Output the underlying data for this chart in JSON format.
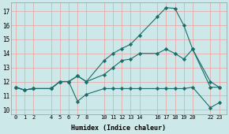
{
  "xlabel": "Humidex (Indice chaleur)",
  "bg_color": "#cce8e8",
  "line_color": "#1a6e6a",
  "grid_color_major": "#e8a0a0",
  "grid_color_minor": "#e8c8c8",
  "xlim": [
    -0.5,
    23.8
  ],
  "ylim": [
    9.7,
    17.6
  ],
  "xticks": [
    0,
    1,
    2,
    4,
    5,
    6,
    7,
    8,
    10,
    11,
    12,
    13,
    14,
    16,
    17,
    18,
    19,
    20,
    22,
    23
  ],
  "yticks": [
    10,
    11,
    12,
    13,
    14,
    15,
    16,
    17
  ],
  "line1_x": [
    0,
    1,
    2,
    4,
    5,
    6,
    7,
    8,
    10,
    11,
    12,
    13,
    14,
    16,
    17,
    18,
    19,
    20,
    22,
    23
  ],
  "line1_y": [
    11.6,
    11.4,
    11.5,
    11.5,
    12.0,
    12.0,
    10.6,
    11.1,
    11.5,
    11.5,
    11.5,
    11.5,
    11.5,
    11.5,
    11.5,
    11.5,
    11.5,
    11.6,
    10.15,
    10.5
  ],
  "line2_x": [
    0,
    1,
    2,
    4,
    5,
    6,
    7,
    8,
    10,
    11,
    12,
    13,
    14,
    16,
    17,
    18,
    19,
    20,
    22,
    23
  ],
  "line2_y": [
    11.6,
    11.4,
    11.5,
    11.5,
    12.0,
    12.0,
    12.4,
    12.0,
    13.5,
    14.0,
    14.35,
    14.65,
    15.3,
    16.6,
    17.25,
    17.2,
    16.0,
    14.3,
    12.0,
    11.6
  ],
  "line3_x": [
    0,
    1,
    2,
    4,
    5,
    6,
    7,
    8,
    10,
    11,
    12,
    13,
    14,
    16,
    17,
    18,
    19,
    20,
    22,
    23
  ],
  "line3_y": [
    11.6,
    11.4,
    11.5,
    11.5,
    12.0,
    12.0,
    12.4,
    12.0,
    12.5,
    13.0,
    13.5,
    13.6,
    14.0,
    14.0,
    14.3,
    14.0,
    13.6,
    14.3,
    11.6,
    11.6
  ]
}
